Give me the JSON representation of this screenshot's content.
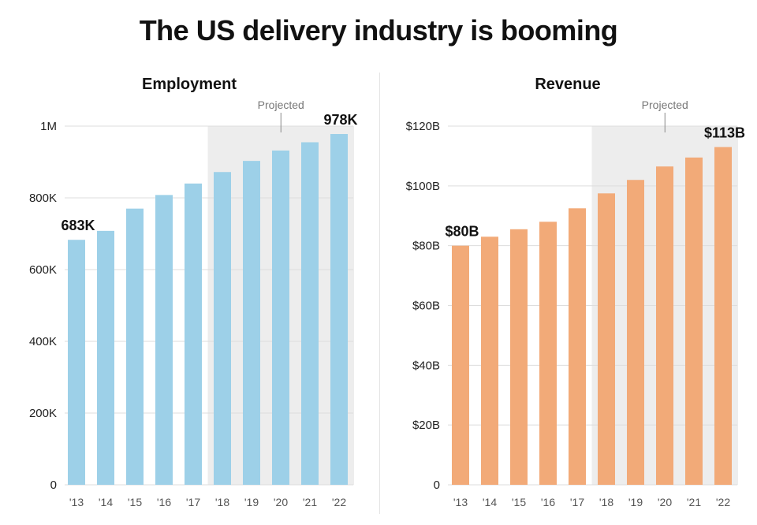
{
  "title": "The US delivery industry is booming",
  "colors": {
    "employment_bar": "#9dd0e8",
    "revenue_bar": "#f2aa78",
    "projected_shade": "#ededed",
    "grid": "#dddddd"
  },
  "chart_data": [
    {
      "type": "bar",
      "title": "Employment",
      "categories": [
        "'13",
        "'14",
        "'15",
        "'16",
        "'17",
        "'18",
        "'19",
        "'20",
        "'21",
        "'22"
      ],
      "values": [
        683000,
        708000,
        770000,
        808000,
        840000,
        872000,
        903000,
        932000,
        955000,
        978000
      ],
      "ylim": [
        0,
        1000000
      ],
      "yticks": [
        0,
        200000,
        400000,
        600000,
        800000,
        1000000
      ],
      "ytick_labels": [
        "0",
        "200K",
        "400K",
        "600K",
        "800K",
        "1M"
      ],
      "xlabel": "",
      "ylabel": "",
      "projected_from_index": 5,
      "projected_label": "Projected",
      "annotations": [
        {
          "index": 0,
          "text": "683K"
        },
        {
          "index": 9,
          "text": "978K"
        }
      ],
      "grid": true
    },
    {
      "type": "bar",
      "title": "Revenue",
      "categories": [
        "'13",
        "'14",
        "'15",
        "'16",
        "'17",
        "'18",
        "'19",
        "'20",
        "'21",
        "'22"
      ],
      "values": [
        80,
        83,
        85.5,
        88,
        92.5,
        97.5,
        102,
        106.5,
        109.5,
        113
      ],
      "ylim": [
        0,
        120
      ],
      "yticks": [
        0,
        20,
        40,
        60,
        80,
        100,
        120
      ],
      "ytick_labels": [
        "0",
        "$20B",
        "$40B",
        "$60B",
        "$80B",
        "$100B",
        "$120B"
      ],
      "xlabel": "",
      "ylabel": "",
      "projected_from_index": 5,
      "projected_label": "Projected",
      "annotations": [
        {
          "index": 0,
          "text": "$80B"
        },
        {
          "index": 9,
          "text": "$113B"
        }
      ],
      "grid": true
    }
  ]
}
